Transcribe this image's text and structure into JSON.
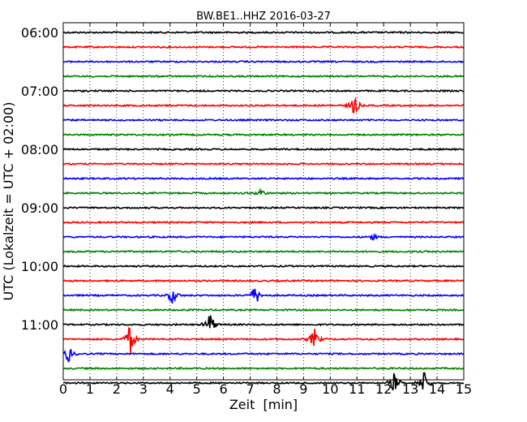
{
  "chart_data": {
    "type": "line",
    "title": "BW.BE1..HHZ 2016-03-27",
    "xlabel": "Zeit  [min]",
    "ylabel": "UTC (Lokalzeit = UTC + 02:00)",
    "xlim": [
      0,
      15
    ],
    "x_ticks": [
      "0",
      "1",
      "2",
      "3",
      "4",
      "5",
      "6",
      "7",
      "8",
      "9",
      "10",
      "11",
      "12",
      "13",
      "14",
      "15"
    ],
    "y_ticks": [
      "06:00",
      "07:00",
      "08:00",
      "09:00",
      "10:00",
      "11:00"
    ],
    "grid": "vertical dotted",
    "trace_colors": [
      "#000000",
      "#ff0000",
      "#0000ff",
      "#008000"
    ],
    "trace_interval_minutes": 15,
    "traces_start": "06:00",
    "trace_count": 24,
    "events": [
      {
        "trace": 5,
        "minute": 10.9,
        "amplitude": 1.0
      },
      {
        "trace": 11,
        "minute": 7.4,
        "amplitude": 0.4
      },
      {
        "trace": 14,
        "minute": 11.6,
        "amplitude": 0.25
      },
      {
        "trace": 18,
        "minute": 4.1,
        "amplitude": 0.8
      },
      {
        "trace": 18,
        "minute": 7.2,
        "amplitude": 1.0
      },
      {
        "trace": 20,
        "minute": 5.5,
        "amplitude": 1.2
      },
      {
        "trace": 21,
        "minute": 2.5,
        "amplitude": 1.5
      },
      {
        "trace": 21,
        "minute": 9.4,
        "amplitude": 1.0
      },
      {
        "trace": 22,
        "minute": 0.2,
        "amplitude": 0.8
      },
      {
        "trace": 24,
        "minute": 12.4,
        "amplitude": 1.0
      },
      {
        "trace": 24,
        "minute": 13.5,
        "amplitude": 1.2
      }
    ]
  }
}
